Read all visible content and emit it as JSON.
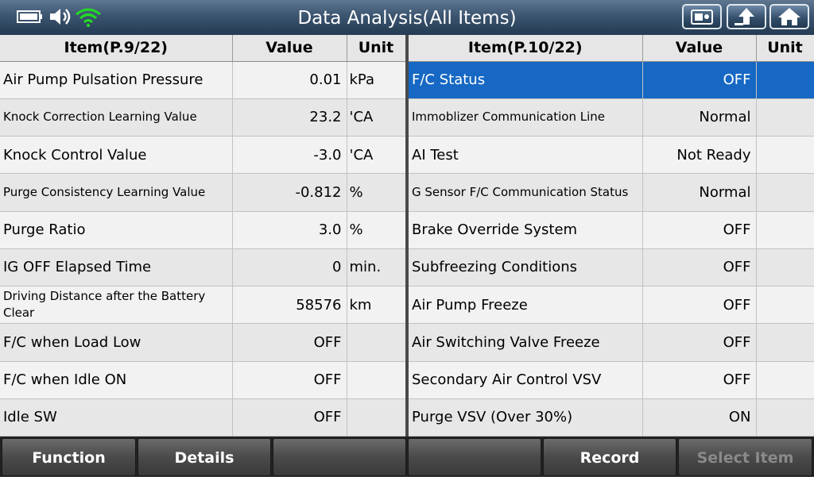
{
  "header": {
    "title": "Data Analysis(All Items)",
    "status_icons": [
      "battery-icon",
      "speaker-icon",
      "wifi-icon"
    ],
    "buttons": [
      "screenshot-icon",
      "upload-icon",
      "home-icon"
    ]
  },
  "left_table": {
    "headers": {
      "item": "Item(P.9/22)",
      "value": "Value",
      "unit": "Unit"
    },
    "rows": [
      {
        "name": "Air Pump Pulsation Pressure",
        "value": "0.01",
        "unit": "kPa"
      },
      {
        "name": "Knock Correction Learning Value",
        "value": "23.2",
        "unit": "'CA"
      },
      {
        "name": "Knock Control Value",
        "value": "-3.0",
        "unit": "'CA"
      },
      {
        "name": "Purge Consistency Learning Value",
        "value": "-0.812",
        "unit": "%"
      },
      {
        "name": "Purge Ratio",
        "value": "3.0",
        "unit": "%"
      },
      {
        "name": "IG OFF Elapsed Time",
        "value": "0",
        "unit": "min."
      },
      {
        "name": "Driving Distance after the Battery Clear",
        "value": "58576",
        "unit": "km"
      },
      {
        "name": "F/C when Load Low",
        "value": "OFF",
        "unit": ""
      },
      {
        "name": "F/C when Idle ON",
        "value": "OFF",
        "unit": ""
      },
      {
        "name": "Idle SW",
        "value": "OFF",
        "unit": ""
      }
    ]
  },
  "right_table": {
    "headers": {
      "item": "Item(P.10/22)",
      "value": "Value",
      "unit": "Unit"
    },
    "rows": [
      {
        "name": "F/C Status",
        "value": "OFF",
        "unit": ""
      },
      {
        "name": "Immoblizer Communication Line",
        "value": "Normal",
        "unit": ""
      },
      {
        "name": "AI Test",
        "value": "Not Ready",
        "unit": ""
      },
      {
        "name": "G Sensor F/C Communication Status",
        "value": "Normal",
        "unit": ""
      },
      {
        "name": "Brake Override System",
        "value": "OFF",
        "unit": ""
      },
      {
        "name": "Subfreezing Conditions",
        "value": "OFF",
        "unit": ""
      },
      {
        "name": "Air Pump Freeze",
        "value": "OFF",
        "unit": ""
      },
      {
        "name": "Air Switching Valve Freeze",
        "value": "OFF",
        "unit": ""
      },
      {
        "name": "Secondary Air Control VSV",
        "value": "OFF",
        "unit": ""
      },
      {
        "name": "Purge VSV (Over 30%)",
        "value": "ON",
        "unit": ""
      }
    ]
  },
  "footer": {
    "function": "Function",
    "details": "Details",
    "blank1": "",
    "blank2": "",
    "record": "Record",
    "select_item": "Select Item"
  },
  "colors": {
    "selected_row": "#1668c4",
    "header_bar": "#3c5570",
    "wifi_green": "#22dd22"
  }
}
